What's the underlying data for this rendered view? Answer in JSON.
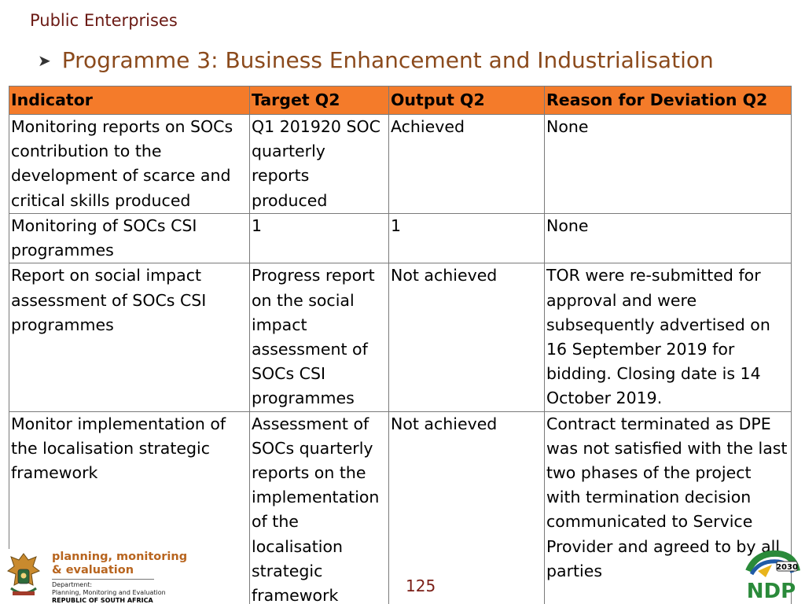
{
  "header": {
    "org": "Public Enterprises",
    "programme": "Programme 3: Business Enhancement and Industrialisation"
  },
  "table": {
    "columns": [
      "Indicator",
      "Target Q2",
      "Output Q2",
      "Reason for Deviation Q2"
    ],
    "rows": [
      [
        "Monitoring reports on SOCs contribution to the development of scarce and critical skills produced",
        "Q1 201920 SOC quarterly reports produced",
        "Achieved",
        "None"
      ],
      [
        "Monitoring of SOCs CSI programmes",
        "1",
        "1",
        "None"
      ],
      [
        "Report on social impact assessment of SOCs CSI programmes",
        "Progress report on the social impact assessment of SOCs CSI programmes",
        "Not achieved",
        "TOR were re-submitted for approval and were subsequently advertised on 16 September 2019 for bidding. Closing date is 14 October 2019."
      ],
      [
        "Monitor implementation of the localisation strategic framework",
        "Assessment of SOCs quarterly reports on the implementation of the localisation strategic framework",
        "Not achieved",
        "Contract terminated as DPE was not satisfied with the last two phases of the project with termination decision communicated to Service Provider and agreed to by all parties"
      ]
    ]
  },
  "footer": {
    "logo_line1": "planning, monitoring",
    "logo_line2": "& evaluation",
    "dept_line1": "Department:",
    "dept_line2": "Planning, Monitoring and Evaluation",
    "country": "REPUBLIC OF SOUTH AFRICA",
    "page_number": "125",
    "ndp_year": "2030",
    "ndp_text": "NDP"
  },
  "colors": {
    "header_fill": "#f47b2a",
    "title_color": "#8b4a1c",
    "org_color": "#6b1a14"
  }
}
